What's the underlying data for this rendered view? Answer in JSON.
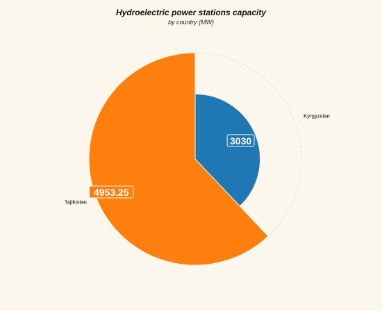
{
  "chart_data": {
    "type": "pie",
    "variant": "rose",
    "title": "Hydroelectric power stations capacity",
    "subtitle": "by country (MW)",
    "categories": [
      "Kyrgyzstan",
      "Tajikistan"
    ],
    "values": [
      3030,
      4953.25
    ],
    "value_labels": [
      "3030",
      "4953.25"
    ],
    "colors": [
      "#1f77b4",
      "#ff7f0e"
    ],
    "grid": true
  }
}
